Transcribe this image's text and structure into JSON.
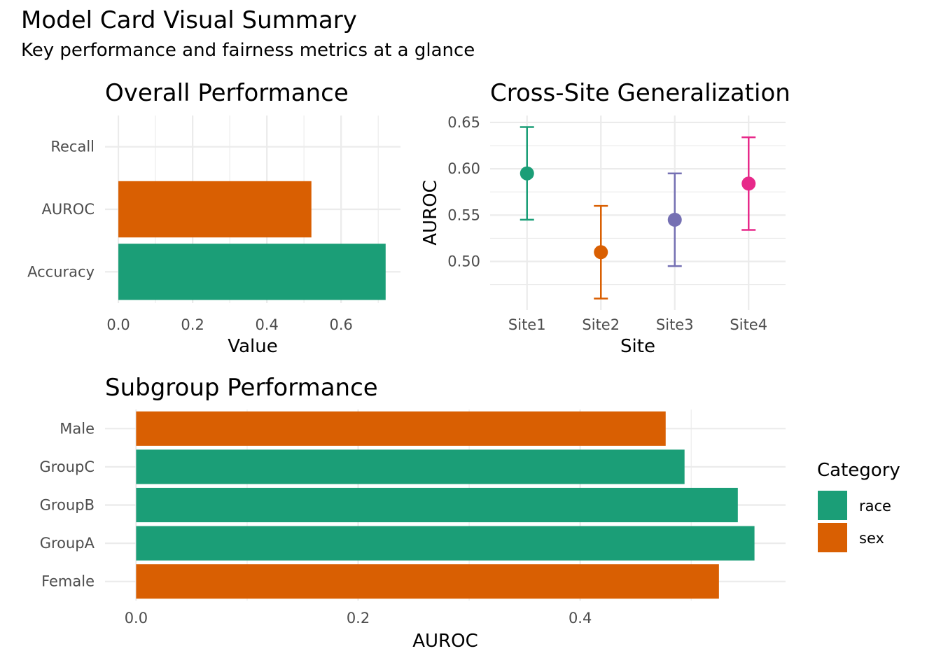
{
  "title": "Model Card Visual Summary",
  "subtitle": "Key performance and fairness metrics at a glance",
  "colors": {
    "race": "#1b9e77",
    "sex": "#d95f02",
    "Site1": "#1b9e77",
    "Site2": "#d95f02",
    "Site3": "#7570b3",
    "Site4": "#e7298a",
    "grid": "#ebebeb",
    "tick_text": "#4d4d4d"
  },
  "chart_data": [
    {
      "type": "bar",
      "orientation": "horizontal",
      "title": "Overall Performance",
      "xlabel": "Value",
      "ylabel": "",
      "categories": [
        "Accuracy",
        "AUROC",
        "Recall"
      ],
      "values": [
        0.72,
        0.52,
        0.0
      ],
      "bar_colors": [
        "#1b9e77",
        "#d95f02",
        "#7570b3"
      ],
      "xlim": [
        -0.036,
        0.76
      ],
      "xticks": [
        "0.0",
        "0.2",
        "0.4",
        "0.6"
      ],
      "grid": true
    },
    {
      "type": "scatter",
      "subtype": "pointrange",
      "title": "Cross-Site Generalization",
      "xlabel": "Site",
      "ylabel": "AUROC",
      "categories": [
        "Site1",
        "Site2",
        "Site3",
        "Site4"
      ],
      "values": [
        0.595,
        0.51,
        0.545,
        0.584
      ],
      "lower": [
        0.545,
        0.46,
        0.495,
        0.534
      ],
      "upper": [
        0.645,
        0.56,
        0.595,
        0.634
      ],
      "ylim": [
        0.4475,
        0.6575
      ],
      "yticks": [
        "0.50",
        "0.55",
        "0.60",
        "0.65"
      ],
      "grid": true
    },
    {
      "type": "bar",
      "orientation": "horizontal",
      "title": "Subgroup Performance",
      "xlabel": "AUROC",
      "ylabel": "",
      "categories": [
        "Female",
        "GroupA",
        "GroupB",
        "GroupC",
        "Male"
      ],
      "values": [
        0.525,
        0.557,
        0.542,
        0.494,
        0.477
      ],
      "category_group": [
        "sex",
        "race",
        "race",
        "race",
        "sex"
      ],
      "xlim": [
        -0.028,
        0.585
      ],
      "xticks": [
        "0.0",
        "0.2",
        "0.4"
      ],
      "grid": true,
      "legend": {
        "title": "Category",
        "position": "right",
        "entries": [
          "race",
          "sex"
        ]
      }
    }
  ]
}
